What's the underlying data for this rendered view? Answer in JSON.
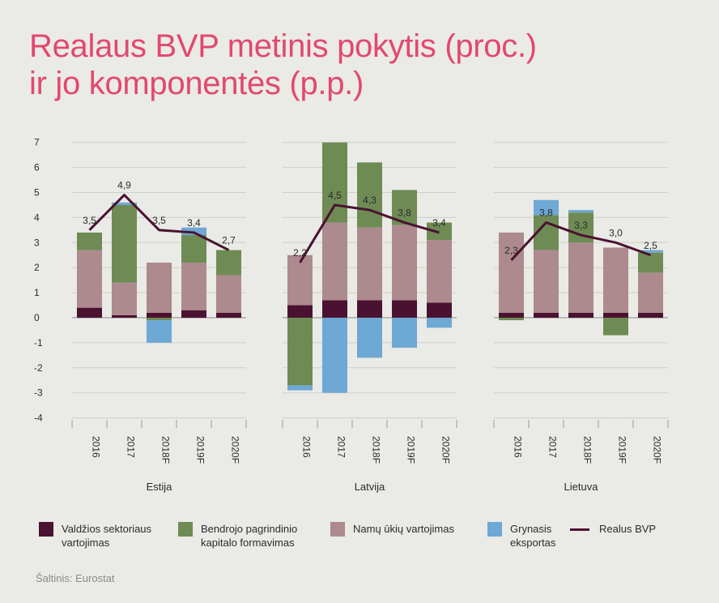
{
  "title": {
    "line1": "Realaus BVP metinis pokytis (proc.)",
    "line2": "ir jo komponentės (p.p.)"
  },
  "source": "Šaltinis: Eurostat",
  "colors": {
    "gov": "#4a1230",
    "invest": "#6e8b54",
    "household": "#ad8a8e",
    "netexport": "#6ea8d4",
    "gdp": "#4a1230",
    "title": "#e2486e",
    "background": "#eaeae6"
  },
  "legend": [
    {
      "key": "gov",
      "type": "box",
      "line1": "Valdžios sektoriaus",
      "line2": "vartojimas"
    },
    {
      "key": "invest",
      "type": "box",
      "line1": "Bendrojo pagrindinio",
      "line2": "kapitalo formavimas"
    },
    {
      "key": "household",
      "type": "box",
      "line1": "Namų ūkių vartojimas",
      "line2": ""
    },
    {
      "key": "netexport",
      "type": "box",
      "line1": "Grynasis",
      "line2": "eksportas"
    },
    {
      "key": "gdp",
      "type": "line",
      "line1": "Realus BVP",
      "line2": ""
    }
  ],
  "chart_data": {
    "type": "bar",
    "stacked": true,
    "ylim": [
      -4,
      7
    ],
    "yticks": [
      "7",
      "6",
      "5",
      "4",
      "3",
      "2",
      "1",
      "0",
      "-1",
      "-2",
      "-3",
      "-4"
    ],
    "categories": [
      "2016",
      "2017",
      "2018F",
      "2019F",
      "2020F"
    ],
    "panels": [
      {
        "name": "Estija",
        "series": {
          "gov": [
            0.4,
            0.1,
            0.2,
            0.3,
            0.2
          ],
          "household": [
            2.3,
            1.3,
            2.0,
            1.9,
            1.5
          ],
          "invest": [
            0.7,
            3.1,
            -0.1,
            1.1,
            1.0
          ],
          "netexport": [
            0.0,
            0.1,
            -0.9,
            0.3,
            0.0
          ]
        },
        "gdp": [
          3.5,
          4.9,
          3.5,
          3.4,
          2.7
        ],
        "gdp_labels": [
          "3,5",
          "4,9",
          "3,5",
          "3,4",
          "2,7"
        ]
      },
      {
        "name": "Latvija",
        "series": {
          "gov": [
            0.5,
            0.7,
            0.7,
            0.7,
            0.6
          ],
          "household": [
            2.0,
            3.1,
            2.9,
            3.0,
            2.5
          ],
          "invest": [
            -2.7,
            3.2,
            2.6,
            1.4,
            0.7
          ],
          "netexport": [
            -0.2,
            -3.0,
            -1.6,
            -1.2,
            -0.4
          ]
        },
        "gdp": [
          2.2,
          4.5,
          4.3,
          3.8,
          3.4
        ],
        "gdp_labels": [
          "2,2",
          "4,5",
          "4,3",
          "3,8",
          "3,4"
        ]
      },
      {
        "name": "Lietuva",
        "series": {
          "gov": [
            0.2,
            0.2,
            0.2,
            0.2,
            0.2
          ],
          "household": [
            3.2,
            2.5,
            2.8,
            2.6,
            1.6
          ],
          "invest": [
            -0.1,
            1.4,
            1.2,
            -0.7,
            0.8
          ],
          "netexport": [
            0.0,
            0.6,
            0.1,
            0.0,
            0.1
          ]
        },
        "gdp": [
          2.3,
          3.8,
          3.3,
          3.0,
          2.5
        ],
        "gdp_labels": [
          "2,3",
          "3,8",
          "3,3",
          "3,0",
          "2,5"
        ]
      }
    ]
  }
}
